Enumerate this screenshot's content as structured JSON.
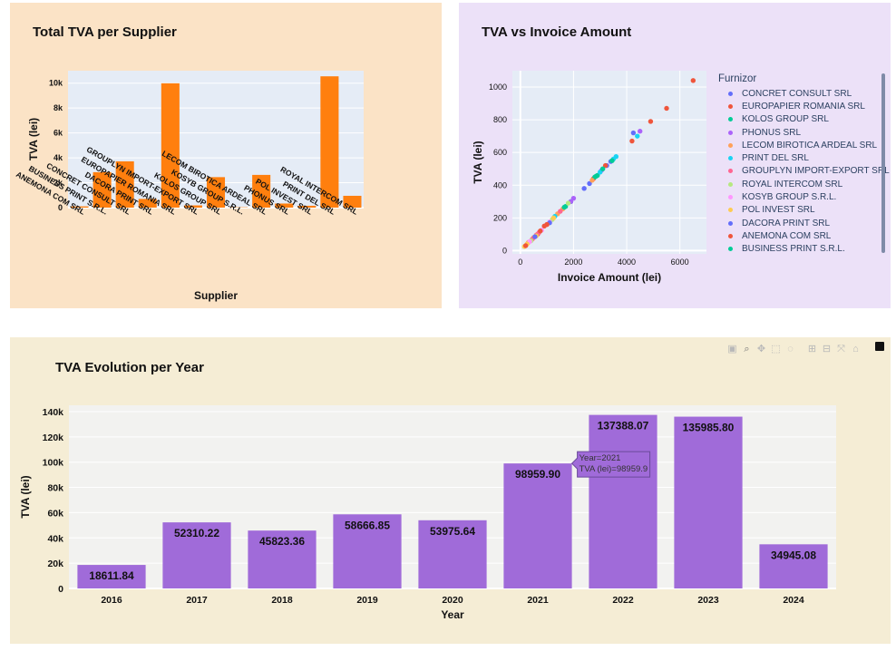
{
  "panel1": {
    "title": "Total TVA per Supplier",
    "chart_data": {
      "type": "bar",
      "xlabel": "Supplier",
      "ylabel": "TVA (lei)",
      "ylim": [
        0,
        11000
      ],
      "yticks": [
        "0",
        "2k",
        "4k",
        "6k",
        "8k",
        "10k"
      ],
      "color": "#ff7f0e",
      "categories": [
        "ANEMONA COM SRL",
        "BUSINESS PRINT S.R.L.",
        "CONCRET CONSULT SRL",
        "DACORA PRINT SRL",
        "EUROPAPIER ROMANIA SRL",
        "GROUPLYN IMPORT-EXPORT SRL",
        "KOLOS GROUP SRL",
        "KOSYB GROUP S.R.L.",
        "LECOM BIROTICA ARDEAL SRL",
        "PHONUS SRL",
        "POL INVEST SRL",
        "PRINT DEL SRL",
        "ROYAL INTERCOM SRL"
      ],
      "values": [
        100,
        2850,
        3720,
        700,
        9990,
        180,
        2450,
        30,
        2630,
        330,
        150,
        10550,
        950
      ]
    }
  },
  "panel2": {
    "title": "TVA vs Invoice Amount",
    "chart_data": {
      "type": "scatter",
      "xlabel": "Invoice Amount (lei)",
      "ylabel": "TVA (lei)",
      "xlim": [
        -300,
        7000
      ],
      "ylim": [
        -20,
        1100
      ],
      "xticks": [
        "0",
        "2000",
        "4000",
        "6000"
      ],
      "yticks": [
        "0",
        "200",
        "400",
        "600",
        "800",
        "1000"
      ],
      "legend_title": "Furnizor",
      "legend_position": "right",
      "series": [
        {
          "name": "CONCRET CONSULT SRL",
          "color": "#636efa",
          "points": [
            [
              2400,
              380
            ],
            [
              2600,
              410
            ],
            [
              3250,
              520
            ],
            [
              4250,
              720
            ]
          ]
        },
        {
          "name": "EUROPAPIER ROMANIA SRL",
          "color": "#ef553b",
          "points": [
            [
              6500,
              1040
            ],
            [
              5500,
              870
            ],
            [
              4900,
              790
            ],
            [
              4200,
              670
            ],
            [
              3200,
              520
            ],
            [
              2750,
              440
            ],
            [
              900,
              150
            ],
            [
              650,
              100
            ]
          ]
        },
        {
          "name": "KOLOS GROUP SRL",
          "color": "#00cc96",
          "points": [
            [
              2900,
              460
            ],
            [
              2800,
              450
            ],
            [
              1700,
              270
            ],
            [
              1900,
              300
            ]
          ]
        },
        {
          "name": "PHONUS SRL",
          "color": "#ab63fa",
          "points": [
            [
              3050,
              490
            ],
            [
              2000,
              320
            ],
            [
              1900,
              300
            ],
            [
              4500,
              730
            ]
          ]
        },
        {
          "name": "LECOM BIROTICA ARDEAL SRL",
          "color": "#ffa15a",
          "points": [
            [
              1400,
              225
            ],
            [
              1600,
              255
            ],
            [
              2700,
              430
            ],
            [
              500,
              80
            ],
            [
              300,
              50
            ]
          ]
        },
        {
          "name": "PRINT DEL SRL",
          "color": "#19d3f3",
          "points": [
            [
              3500,
              560
            ],
            [
              3600,
              575
            ],
            [
              3000,
              480
            ],
            [
              4400,
              700
            ],
            [
              1300,
              210
            ]
          ]
        },
        {
          "name": "GROUPLYN IMPORT-EXPORT SRL",
          "color": "#ff6692",
          "points": [
            [
              700,
              110
            ],
            [
              1000,
              160
            ],
            [
              1500,
              240
            ],
            [
              600,
              95
            ],
            [
              450,
              70
            ]
          ]
        },
        {
          "name": "ROYAL INTERCOM SRL",
          "color": "#b6e880",
          "points": [
            [
              1800,
              290
            ],
            [
              1200,
              190
            ],
            [
              400,
              60
            ]
          ]
        },
        {
          "name": "KOSYB GROUP S.R.L.",
          "color": "#ff97ff",
          "points": [
            [
              800,
              125
            ],
            [
              350,
              55
            ],
            [
              1100,
              175
            ]
          ]
        },
        {
          "name": "POL INVEST SRL",
          "color": "#fecb52",
          "points": [
            [
              1250,
              200
            ],
            [
              250,
              40
            ],
            [
              150,
              25
            ],
            [
              600,
              90
            ]
          ]
        },
        {
          "name": "DACORA PRINT SRL",
          "color": "#636efa",
          "points": [
            [
              3400,
              545
            ],
            [
              1100,
              170
            ],
            [
              550,
              85
            ]
          ]
        },
        {
          "name": "ANEMONA COM SRL",
          "color": "#ef553b",
          "points": [
            [
              1000,
              160
            ],
            [
              750,
              120
            ],
            [
              200,
              30
            ]
          ]
        },
        {
          "name": "BUSINESS PRINT S.R.L.",
          "color": "#00cc96",
          "points": [
            [
              3100,
              500
            ],
            [
              2850,
              455
            ],
            [
              3450,
              550
            ],
            [
              1650,
              265
            ]
          ]
        }
      ]
    }
  },
  "panel3": {
    "title": "TVA Evolution per Year",
    "chart_data": {
      "type": "bar",
      "xlabel": "Year",
      "ylabel": "TVA (lei)",
      "ylim": [
        0,
        145000
      ],
      "yticks": [
        "0",
        "20k",
        "40k",
        "60k",
        "80k",
        "100k",
        "120k",
        "140k"
      ],
      "color": "#a06bd9",
      "categories": [
        "2016",
        "2017",
        "2018",
        "2019",
        "2020",
        "2021",
        "2022",
        "2023",
        "2024"
      ],
      "values": [
        18611.84,
        52310.22,
        45823.36,
        58666.85,
        53975.64,
        98959.9,
        137388.07,
        135985.8,
        34945.08
      ],
      "labels": [
        "18611.84",
        "52310.22",
        "45823.36",
        "58666.85",
        "53975.64",
        "98959.90",
        "137388.07",
        "135985.80",
        "34945.08"
      ]
    },
    "tooltip": {
      "line1": "Year=2021",
      "line2": "TVA (lei)=98959.9"
    },
    "modebar": [
      "camera-icon",
      "zoom-icon",
      "pan-icon",
      "box-select-icon",
      "lasso-icon",
      "zoom-in-icon",
      "zoom-out-icon",
      "autoscale-icon",
      "home-icon"
    ]
  }
}
